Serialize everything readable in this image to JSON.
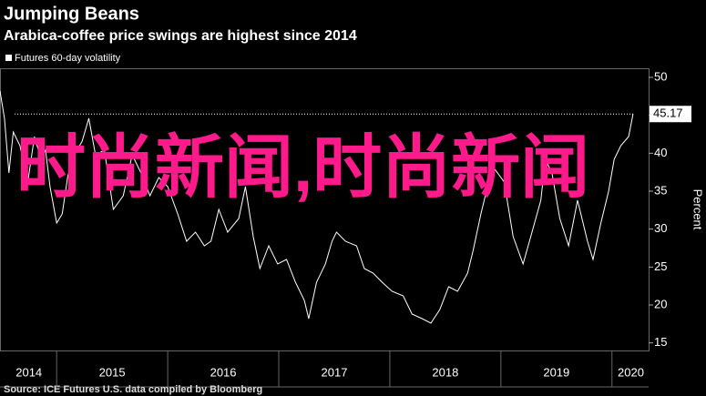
{
  "chart_data": {
    "type": "line",
    "title": "Jumping Beans",
    "subtitle": "Arabica-coffee price swings are highest since 2014",
    "y_label": "Percent",
    "source": "Source: ICE Futures U.S. data compiled by Bloomberg",
    "watermark": "时尚新闻,时尚新闻",
    "last_value": 45.17,
    "x": [
      2014.49,
      2014.53,
      2014.57,
      2014.61,
      2014.67,
      2014.74,
      2014.8,
      2014.86,
      2014.9,
      2014.94,
      2015.0,
      2015.05,
      2015.1,
      2015.16,
      2015.23,
      2015.29,
      2015.35,
      2015.43,
      2015.51,
      2015.6,
      2015.68,
      2015.76,
      2015.84,
      2015.92,
      2016.0,
      2016.09,
      2016.17,
      2016.25,
      2016.33,
      2016.39,
      2016.46,
      2016.54,
      2016.64,
      2016.7,
      2016.77,
      2016.83,
      2016.91,
      2016.99,
      2017.07,
      2017.15,
      2017.23,
      2017.27,
      2017.34,
      2017.42,
      2017.48,
      2017.52,
      2017.6,
      2017.7,
      2017.77,
      2017.85,
      2017.93,
      2018.02,
      2018.12,
      2018.2,
      2018.29,
      2018.37,
      2018.45,
      2018.53,
      2018.61,
      2018.7,
      2018.75,
      2018.82,
      2018.89,
      2018.94,
      2019.03,
      2019.11,
      2019.2,
      2019.28,
      2019.36,
      2019.4,
      2019.46,
      2019.53,
      2019.61,
      2019.69,
      2019.78,
      2019.83,
      2019.9,
      2019.97,
      2020.02,
      2020.08,
      2020.15,
      2020.19
    ],
    "series": [
      {
        "name": "Futures 60-day volatility",
        "color": "#ffffff",
        "values": [
          48.2,
          44.6,
          37.4,
          42.8,
          41,
          36.2,
          42.2,
          39.2,
          40.4,
          35.6,
          30.8,
          32,
          37,
          39.8,
          41.6,
          44.6,
          39.8,
          40.4,
          32.6,
          34.4,
          39.8,
          37.4,
          34.4,
          36.8,
          35.6,
          32,
          28.4,
          29.6,
          27.8,
          28.4,
          32.6,
          29.6,
          31.4,
          35.6,
          29,
          24.8,
          27.8,
          25.4,
          26,
          23,
          20.6,
          18.2,
          23,
          25.4,
          28.4,
          29.6,
          28.4,
          27.8,
          24.8,
          24.2,
          23,
          21.8,
          21.2,
          18.8,
          18.2,
          17.6,
          19.4,
          22.4,
          21.8,
          24.2,
          27.2,
          32,
          36.2,
          38,
          36.2,
          29,
          25.4,
          29.6,
          33.8,
          39.2,
          37.4,
          31.4,
          27.8,
          33.8,
          28.4,
          26,
          30.8,
          35,
          39.2,
          41,
          42.2,
          45.17
        ]
      }
    ],
    "xlim": [
      2014.49,
      2020.33
    ],
    "xticks": [
      {
        "value": 2014.75,
        "label": "2014"
      },
      {
        "value": 2015.5,
        "label": "2015"
      },
      {
        "value": 2016.5,
        "label": "2016"
      },
      {
        "value": 2017.5,
        "label": "2017"
      },
      {
        "value": 2018.5,
        "label": "2018"
      },
      {
        "value": 2019.5,
        "label": "2019"
      },
      {
        "value": 2020.17,
        "label": "2020"
      }
    ],
    "ylim": [
      14,
      51.2
    ],
    "yticks": [
      15,
      20,
      25,
      30,
      35,
      40,
      45,
      50
    ],
    "grid": false
  }
}
